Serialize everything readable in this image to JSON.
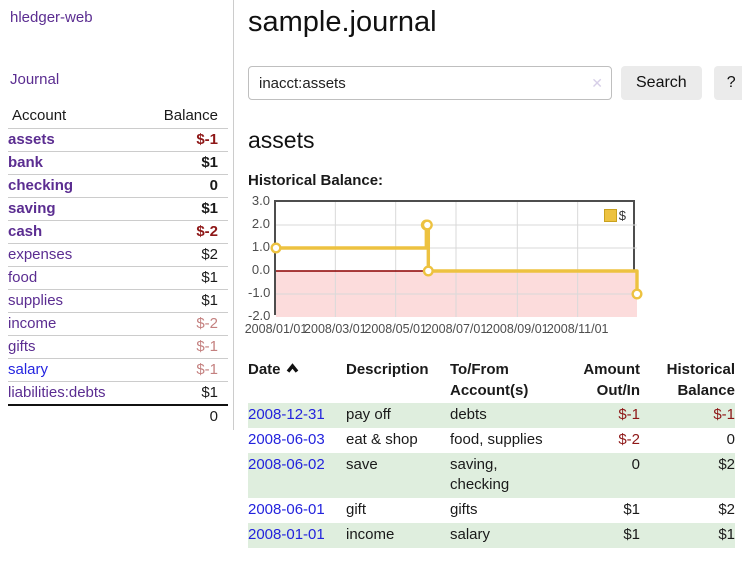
{
  "colors": {
    "link_purple": "#5b2d91",
    "link_blue": "#2323dd",
    "negative_strong": "#8e1717",
    "negative_soft": "#c4807f",
    "row_green": "#dfeede",
    "chart_gold": "#edc240",
    "chart_negative_region": "#fcdcdc",
    "chart_zero_line": "#8b0000"
  },
  "sidebar": {
    "brand": "hledger-web",
    "journal_link": "Journal",
    "headers": {
      "account": "Account",
      "balance": "Balance"
    },
    "rows": [
      {
        "name": "assets",
        "depth": 1,
        "bold": true,
        "balance": "$-1",
        "bal_class": "neg"
      },
      {
        "name": "bank",
        "depth": 2,
        "bold": true,
        "balance": "$1",
        "bal_class": ""
      },
      {
        "name": "checking",
        "depth": 3,
        "bold": true,
        "balance": "0",
        "bal_class": ""
      },
      {
        "name": "saving",
        "depth": 3,
        "bold": true,
        "balance": "$1",
        "bal_class": ""
      },
      {
        "name": "cash",
        "depth": 2,
        "bold": true,
        "balance": "$-2",
        "bal_class": "neg"
      },
      {
        "name": "expenses",
        "depth": 1,
        "bold": false,
        "balance": "$2",
        "bal_class": ""
      },
      {
        "name": "food",
        "depth": 2,
        "bold": false,
        "balance": "$1",
        "bal_class": ""
      },
      {
        "name": "supplies",
        "depth": 2,
        "bold": false,
        "balance": "$1",
        "bal_class": ""
      },
      {
        "name": "income",
        "depth": 1,
        "bold": false,
        "balance": "$-2",
        "bal_class": "neg-soft"
      },
      {
        "name": "gifts",
        "depth": 2,
        "bold": false,
        "balance": "$-1",
        "bal_class": "neg-soft"
      },
      {
        "name": "salary",
        "depth": 2,
        "bold": false,
        "balance": "$-1",
        "bal_class": "neg-soft",
        "link_blue": true
      },
      {
        "name": "liabilities:debts",
        "depth": 1,
        "bold": false,
        "balance": "$1",
        "bal_class": ""
      }
    ],
    "total": "0"
  },
  "main": {
    "title": "sample.journal",
    "search": {
      "value": "inacct:assets",
      "clear_icon": "✕",
      "button": "Search",
      "help_button": "?"
    },
    "account_heading": "assets",
    "chart_label": "Historical Balance:",
    "register": {
      "headers": {
        "date": "Date",
        "description": "Description",
        "account_line1": "To/From",
        "account_line2": "Account(s)",
        "amount_line1": "Amount",
        "amount_line2": "Out/In",
        "balance_line1": "Historical",
        "balance_line2": "Balance"
      },
      "rows": [
        {
          "date": "2008-12-31",
          "description": "pay off",
          "accounts_lines": [
            "debts"
          ],
          "amount": "$-1",
          "amount_neg": true,
          "balance": "$-1",
          "balance_neg": true,
          "shaded": true
        },
        {
          "date": "2008-06-03",
          "description": "eat & shop",
          "accounts_lines": [
            "food, supplies"
          ],
          "amount": "$-2",
          "amount_neg": true,
          "balance": "0",
          "balance_neg": false,
          "shaded": false
        },
        {
          "date": "2008-06-02",
          "description": "save",
          "accounts_lines": [
            "saving,",
            "checking"
          ],
          "amount": "0",
          "amount_neg": false,
          "balance": "$2",
          "balance_neg": false,
          "shaded": true
        },
        {
          "date": "2008-06-01",
          "description": "gift",
          "accounts_lines": [
            "gifts"
          ],
          "amount": "$1",
          "amount_neg": false,
          "balance": "$2",
          "balance_neg": false,
          "shaded": false
        },
        {
          "date": "2008-01-01",
          "description": "income",
          "accounts_lines": [
            "salary"
          ],
          "amount": "$1",
          "amount_neg": false,
          "balance": "$1",
          "balance_neg": false,
          "shaded": true
        }
      ]
    }
  },
  "chart_data": {
    "type": "line",
    "title": "Historical Balance:",
    "step": true,
    "series": [
      {
        "name": "$",
        "color": "#edc240",
        "points": [
          [
            "2008-01-01",
            1
          ],
          [
            "2008-06-01",
            2
          ],
          [
            "2008-06-02",
            2
          ],
          [
            "2008-06-03",
            0
          ],
          [
            "2008-12-31",
            -1
          ]
        ]
      }
    ],
    "xrange": [
      "2008-01-01",
      "2008-12-31"
    ],
    "ylim": [
      -2,
      3
    ],
    "yticks": [
      "3.0",
      "2.0",
      "1.0",
      "0.0",
      "-1.0",
      "-2.0"
    ],
    "xticks": [
      "2008/01/01",
      "2008/03/01",
      "2008/05/01",
      "2008/07/01",
      "2008/09/01",
      "2008/11/01"
    ],
    "legend": {
      "position": "top-right",
      "label": "$"
    },
    "grid": true,
    "negative_region_color": "#fcdcdc",
    "zero_line_color": "#8b0000"
  }
}
